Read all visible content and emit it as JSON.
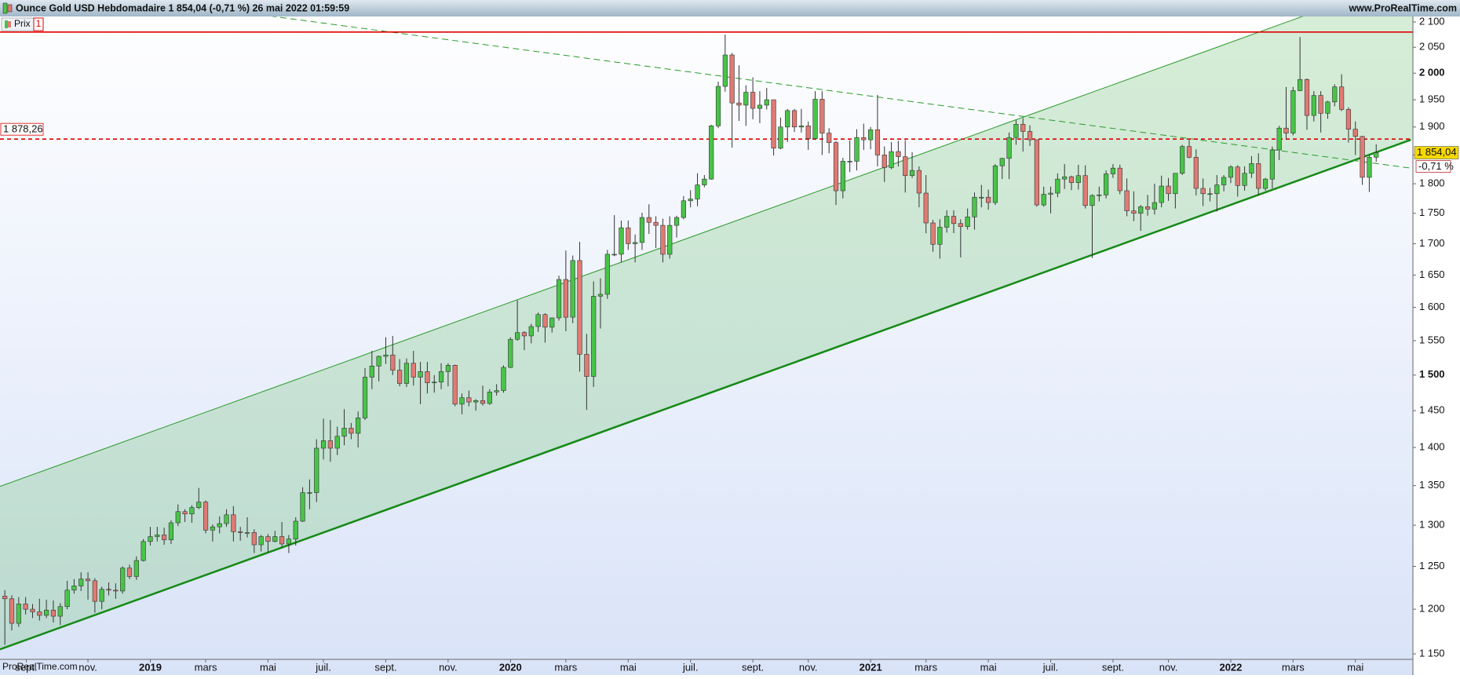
{
  "chart_data": {
    "type": "candlestick",
    "title": "Ounce Gold USD Hebdomadaire 1 854,04 (-0,71 %) 26 mai 2022 01:59:59",
    "source": "www.ProRealTime.com",
    "watermark": "ProRealTime.com",
    "legend": "Prix",
    "legend_index": "1",
    "log_scale": true,
    "up_color": "#48c448",
    "down_color": "#e07a74",
    "xlim": [
      -0.7,
      203.3
    ],
    "ylim": [
      1150,
      2100
    ],
    "yticks": [
      {
        "value": 1150,
        "label": "1 150"
      },
      {
        "value": 1200,
        "label": "1 200"
      },
      {
        "value": 1250,
        "label": "1 250"
      },
      {
        "value": 1300,
        "label": "1 300"
      },
      {
        "value": 1350,
        "label": "1 350"
      },
      {
        "value": 1400,
        "label": "1 400"
      },
      {
        "value": 1450,
        "label": "1 450"
      },
      {
        "value": 1500,
        "label": "1 500"
      },
      {
        "value": 1550,
        "label": "1 550"
      },
      {
        "value": 1600,
        "label": "1 600"
      },
      {
        "value": 1650,
        "label": "1 650"
      },
      {
        "value": 1700,
        "label": "1 700"
      },
      {
        "value": 1750,
        "label": "1 750"
      },
      {
        "value": 1800,
        "label": "1 800"
      },
      {
        "value": 1850,
        "label": "1 850"
      },
      {
        "value": 1900,
        "label": "1 900"
      },
      {
        "value": 1950,
        "label": "1 950"
      },
      {
        "value": 2000,
        "label": "2 000"
      },
      {
        "value": 2050,
        "label": "2 050"
      },
      {
        "value": 2100,
        "label": "2 100"
      }
    ],
    "xticks": [
      {
        "value": 3.1,
        "label": "sept."
      },
      {
        "value": 12,
        "label": "nov."
      },
      {
        "value": 21,
        "label": "2019"
      },
      {
        "value": 29,
        "label": "mars"
      },
      {
        "value": 38,
        "label": "mai"
      },
      {
        "value": 46,
        "label": "juil."
      },
      {
        "value": 55,
        "label": "sept."
      },
      {
        "value": 64,
        "label": "nov."
      },
      {
        "value": 73,
        "label": "2020"
      },
      {
        "value": 81,
        "label": "mars"
      },
      {
        "value": 90,
        "label": "mai"
      },
      {
        "value": 99,
        "label": "juil."
      },
      {
        "value": 108,
        "label": "sept."
      },
      {
        "value": 116,
        "label": "nov."
      },
      {
        "value": 125,
        "label": "2021"
      },
      {
        "value": 133,
        "label": "mars"
      },
      {
        "value": 142,
        "label": "mai"
      },
      {
        "value": 151,
        "label": "juil."
      },
      {
        "value": 160,
        "label": "sept."
      },
      {
        "value": 168,
        "label": "nov."
      },
      {
        "value": 177,
        "label": "2022"
      },
      {
        "value": 186,
        "label": "mars"
      },
      {
        "value": 195,
        "label": "mai"
      }
    ],
    "levels": [
      {
        "value": 2080,
        "color": "#e00000",
        "style": "solid"
      },
      {
        "value": 1878.26,
        "label": "1 878,26",
        "color": "#e00000",
        "style": "dashed"
      }
    ],
    "trendlines": [
      {
        "x": [
          -0.7,
          203
        ],
        "y": [
          1155,
          1877
        ],
        "color": "#158a15",
        "width": 2.5,
        "style": "solid"
      },
      {
        "x": [
          -0.7,
          187.5
        ],
        "y": [
          1349,
          2112
        ],
        "color": "#2a9a2a",
        "width": 1,
        "style": "solid"
      },
      {
        "x": [
          38.3,
          203
        ],
        "y": [
          2112,
          1827
        ],
        "color": "#2a9a2a",
        "width": 1,
        "style": "dashed"
      }
    ],
    "channel_fill": "rgba(110,195,110,0.28)",
    "last_price": {
      "value": 1854.04,
      "label": "1 854,04"
    },
    "change": {
      "value": -0.71,
      "label": "-0,71 %"
    },
    "candles": [
      [
        1215,
        1222,
        1160,
        1212
      ],
      [
        1212,
        1216,
        1176,
        1184
      ],
      [
        1184,
        1214,
        1180,
        1206
      ],
      [
        1206,
        1214,
        1194,
        1200
      ],
      [
        1200,
        1206,
        1190,
        1197
      ],
      [
        1197,
        1212,
        1187,
        1193
      ],
      [
        1193,
        1211,
        1190,
        1199
      ],
      [
        1199,
        1210,
        1185,
        1192
      ],
      [
        1192,
        1207,
        1182,
        1203
      ],
      [
        1203,
        1233,
        1200,
        1222
      ],
      [
        1222,
        1235,
        1218,
        1227
      ],
      [
        1227,
        1243,
        1221,
        1235
      ],
      [
        1235,
        1243,
        1211,
        1233
      ],
      [
        1233,
        1236,
        1196,
        1209
      ],
      [
        1209,
        1226,
        1200,
        1223
      ],
      [
        1223,
        1231,
        1216,
        1222
      ],
      [
        1222,
        1230,
        1212,
        1221
      ],
      [
        1221,
        1250,
        1218,
        1248
      ],
      [
        1248,
        1252,
        1235,
        1238
      ],
      [
        1238,
        1262,
        1234,
        1257
      ],
      [
        1257,
        1283,
        1256,
        1280
      ],
      [
        1280,
        1298,
        1275,
        1286
      ],
      [
        1286,
        1298,
        1280,
        1288
      ],
      [
        1288,
        1297,
        1276,
        1282
      ],
      [
        1282,
        1306,
        1277,
        1303
      ],
      [
        1303,
        1326,
        1299,
        1317
      ],
      [
        1317,
        1320,
        1304,
        1314
      ],
      [
        1314,
        1325,
        1303,
        1322
      ],
      [
        1322,
        1347,
        1320,
        1329
      ],
      [
        1329,
        1331,
        1290,
        1294
      ],
      [
        1294,
        1301,
        1280,
        1298
      ],
      [
        1298,
        1311,
        1290,
        1302
      ],
      [
        1302,
        1320,
        1298,
        1313
      ],
      [
        1313,
        1324,
        1280,
        1292
      ],
      [
        1292,
        1298,
        1281,
        1291
      ],
      [
        1291,
        1310,
        1285,
        1291
      ],
      [
        1291,
        1295,
        1266,
        1276
      ],
      [
        1276,
        1288,
        1268,
        1286
      ],
      [
        1286,
        1289,
        1267,
        1280
      ],
      [
        1280,
        1293,
        1279,
        1286
      ],
      [
        1286,
        1304,
        1273,
        1277
      ],
      [
        1277,
        1288,
        1266,
        1283
      ],
      [
        1283,
        1310,
        1275,
        1305
      ],
      [
        1305,
        1348,
        1304,
        1341
      ],
      [
        1341,
        1358,
        1320,
        1341
      ],
      [
        1341,
        1411,
        1329,
        1399
      ],
      [
        1399,
        1439,
        1384,
        1409
      ],
      [
        1409,
        1437,
        1381,
        1399
      ],
      [
        1399,
        1428,
        1390,
        1415
      ],
      [
        1415,
        1452,
        1403,
        1426
      ],
      [
        1426,
        1433,
        1411,
        1419
      ],
      [
        1419,
        1449,
        1400,
        1440
      ],
      [
        1440,
        1510,
        1437,
        1497
      ],
      [
        1497,
        1535,
        1480,
        1513
      ],
      [
        1513,
        1528,
        1491,
        1527
      ],
      [
        1527,
        1555,
        1516,
        1529
      ],
      [
        1529,
        1557,
        1500,
        1507
      ],
      [
        1507,
        1523,
        1484,
        1488
      ],
      [
        1488,
        1524,
        1483,
        1517
      ],
      [
        1517,
        1535,
        1485,
        1497
      ],
      [
        1497,
        1519,
        1459,
        1505
      ],
      [
        1505,
        1519,
        1474,
        1489
      ],
      [
        1489,
        1500,
        1475,
        1490
      ],
      [
        1490,
        1517,
        1480,
        1505
      ],
      [
        1505,
        1517,
        1484,
        1514
      ],
      [
        1514,
        1515,
        1456,
        1459
      ],
      [
        1459,
        1474,
        1445,
        1468
      ],
      [
        1468,
        1478,
        1456,
        1462
      ],
      [
        1462,
        1466,
        1450,
        1464
      ],
      [
        1464,
        1485,
        1457,
        1460
      ],
      [
        1460,
        1480,
        1458,
        1476
      ],
      [
        1476,
        1487,
        1471,
        1478
      ],
      [
        1478,
        1514,
        1475,
        1511
      ],
      [
        1511,
        1555,
        1510,
        1552
      ],
      [
        1552,
        1611,
        1550,
        1562
      ],
      [
        1562,
        1564,
        1536,
        1557
      ],
      [
        1557,
        1575,
        1546,
        1571
      ],
      [
        1571,
        1592,
        1563,
        1589
      ],
      [
        1589,
        1591,
        1547,
        1570
      ],
      [
        1570,
        1584,
        1562,
        1584
      ],
      [
        1584,
        1649,
        1580,
        1643
      ],
      [
        1643,
        1689,
        1564,
        1585
      ],
      [
        1585,
        1681,
        1576,
        1673
      ],
      [
        1673,
        1703,
        1505,
        1530
      ],
      [
        1530,
        1560,
        1451,
        1498
      ],
      [
        1498,
        1640,
        1483,
        1617
      ],
      [
        1617,
        1645,
        1568,
        1620
      ],
      [
        1620,
        1690,
        1613,
        1683
      ],
      [
        1683,
        1747,
        1680,
        1683
      ],
      [
        1683,
        1738,
        1670,
        1726
      ],
      [
        1726,
        1738,
        1690,
        1700
      ],
      [
        1700,
        1715,
        1670,
        1702
      ],
      [
        1702,
        1751,
        1690,
        1743
      ],
      [
        1743,
        1765,
        1716,
        1735
      ],
      [
        1735,
        1745,
        1693,
        1730
      ],
      [
        1730,
        1741,
        1670,
        1683
      ],
      [
        1683,
        1745,
        1676,
        1730
      ],
      [
        1730,
        1746,
        1710,
        1743
      ],
      [
        1743,
        1779,
        1740,
        1771
      ],
      [
        1771,
        1789,
        1760,
        1774
      ],
      [
        1774,
        1818,
        1762,
        1798
      ],
      [
        1798,
        1815,
        1794,
        1808
      ],
      [
        1808,
        1904,
        1807,
        1902
      ],
      [
        1902,
        1984,
        1898,
        1975
      ],
      [
        1975,
        2075,
        1965,
        2035
      ],
      [
        2035,
        2039,
        1863,
        1944
      ],
      [
        1944,
        2015,
        1911,
        1940
      ],
      [
        1940,
        1977,
        1902,
        1964
      ],
      [
        1964,
        1992,
        1914,
        1934
      ],
      [
        1934,
        1966,
        1907,
        1940
      ],
      [
        1940,
        1972,
        1932,
        1950
      ],
      [
        1950,
        1950,
        1849,
        1862
      ],
      [
        1862,
        1917,
        1860,
        1900
      ],
      [
        1900,
        1933,
        1873,
        1930
      ],
      [
        1930,
        1933,
        1891,
        1900
      ],
      [
        1900,
        1933,
        1890,
        1902
      ],
      [
        1902,
        1910,
        1859,
        1879
      ],
      [
        1879,
        1966,
        1877,
        1951
      ],
      [
        1951,
        1966,
        1850,
        1889
      ],
      [
        1889,
        1898,
        1853,
        1872
      ],
      [
        1872,
        1875,
        1764,
        1788
      ],
      [
        1788,
        1845,
        1775,
        1839
      ],
      [
        1839,
        1876,
        1820,
        1839
      ],
      [
        1839,
        1896,
        1823,
        1881
      ],
      [
        1881,
        1906,
        1859,
        1877
      ],
      [
        1877,
        1900,
        1860,
        1895
      ],
      [
        1895,
        1959,
        1830,
        1850
      ],
      [
        1850,
        1865,
        1803,
        1828
      ],
      [
        1828,
        1873,
        1825,
        1856
      ],
      [
        1856,
        1875,
        1830,
        1847
      ],
      [
        1847,
        1876,
        1785,
        1814
      ],
      [
        1814,
        1855,
        1810,
        1823
      ],
      [
        1823,
        1830,
        1760,
        1784
      ],
      [
        1784,
        1815,
        1717,
        1734
      ],
      [
        1734,
        1739,
        1687,
        1699
      ],
      [
        1699,
        1740,
        1676,
        1727
      ],
      [
        1727,
        1755,
        1718,
        1745
      ],
      [
        1745,
        1755,
        1717,
        1733
      ],
      [
        1733,
        1740,
        1678,
        1728
      ],
      [
        1728,
        1758,
        1723,
        1744
      ],
      [
        1744,
        1785,
        1723,
        1777
      ],
      [
        1777,
        1798,
        1760,
        1777
      ],
      [
        1777,
        1790,
        1756,
        1768
      ],
      [
        1768,
        1834,
        1764,
        1831
      ],
      [
        1831,
        1845,
        1808,
        1844
      ],
      [
        1844,
        1890,
        1808,
        1881
      ],
      [
        1881,
        1913,
        1868,
        1905
      ],
      [
        1905,
        1916,
        1856,
        1892
      ],
      [
        1892,
        1903,
        1866,
        1877
      ],
      [
        1877,
        1877,
        1761,
        1764
      ],
      [
        1764,
        1795,
        1761,
        1782
      ],
      [
        1782,
        1795,
        1750,
        1784
      ],
      [
        1784,
        1818,
        1777,
        1808
      ],
      [
        1808,
        1834,
        1791,
        1812
      ],
      [
        1812,
        1814,
        1789,
        1802
      ],
      [
        1802,
        1833,
        1790,
        1814
      ],
      [
        1814,
        1832,
        1758,
        1763
      ],
      [
        1763,
        1782,
        1677,
        1780
      ],
      [
        1780,
        1795,
        1770,
        1781
      ],
      [
        1781,
        1823,
        1775,
        1817
      ],
      [
        1817,
        1834,
        1810,
        1827
      ],
      [
        1827,
        1833,
        1782,
        1788
      ],
      [
        1788,
        1809,
        1745,
        1754
      ],
      [
        1754,
        1787,
        1737,
        1750
      ],
      [
        1750,
        1764,
        1721,
        1761
      ],
      [
        1761,
        1781,
        1746,
        1757
      ],
      [
        1757,
        1800,
        1748,
        1768
      ],
      [
        1768,
        1814,
        1760,
        1796
      ],
      [
        1796,
        1810,
        1771,
        1783
      ],
      [
        1783,
        1818,
        1758,
        1818
      ],
      [
        1818,
        1868,
        1815,
        1865
      ],
      [
        1865,
        1877,
        1844,
        1846
      ],
      [
        1846,
        1860,
        1780,
        1792
      ],
      [
        1792,
        1809,
        1762,
        1783
      ],
      [
        1783,
        1793,
        1770,
        1783
      ],
      [
        1783,
        1815,
        1753,
        1798
      ],
      [
        1798,
        1815,
        1787,
        1811
      ],
      [
        1811,
        1832,
        1801,
        1829
      ],
      [
        1829,
        1832,
        1778,
        1797
      ],
      [
        1797,
        1830,
        1788,
        1818
      ],
      [
        1818,
        1848,
        1810,
        1835
      ],
      [
        1835,
        1853,
        1780,
        1792
      ],
      [
        1792,
        1810,
        1788,
        1808
      ],
      [
        1808,
        1865,
        1792,
        1859
      ],
      [
        1859,
        1902,
        1841,
        1898
      ],
      [
        1898,
        1974,
        1878,
        1889
      ],
      [
        1889,
        1974,
        1885,
        1967
      ],
      [
        1967,
        2070,
        1966,
        1988
      ],
      [
        1988,
        1990,
        1895,
        1921
      ],
      [
        1921,
        1966,
        1910,
        1958
      ],
      [
        1958,
        1966,
        1890,
        1925
      ],
      [
        1925,
        1948,
        1915,
        1946
      ],
      [
        1946,
        1979,
        1938,
        1974
      ],
      [
        1974,
        1998,
        1929,
        1932
      ],
      [
        1932,
        1936,
        1872,
        1896
      ],
      [
        1896,
        1910,
        1850,
        1883
      ],
      [
        1883,
        1884,
        1798,
        1811
      ],
      [
        1811,
        1849,
        1786,
        1846
      ],
      [
        1846,
        1869,
        1838,
        1854
      ]
    ]
  }
}
